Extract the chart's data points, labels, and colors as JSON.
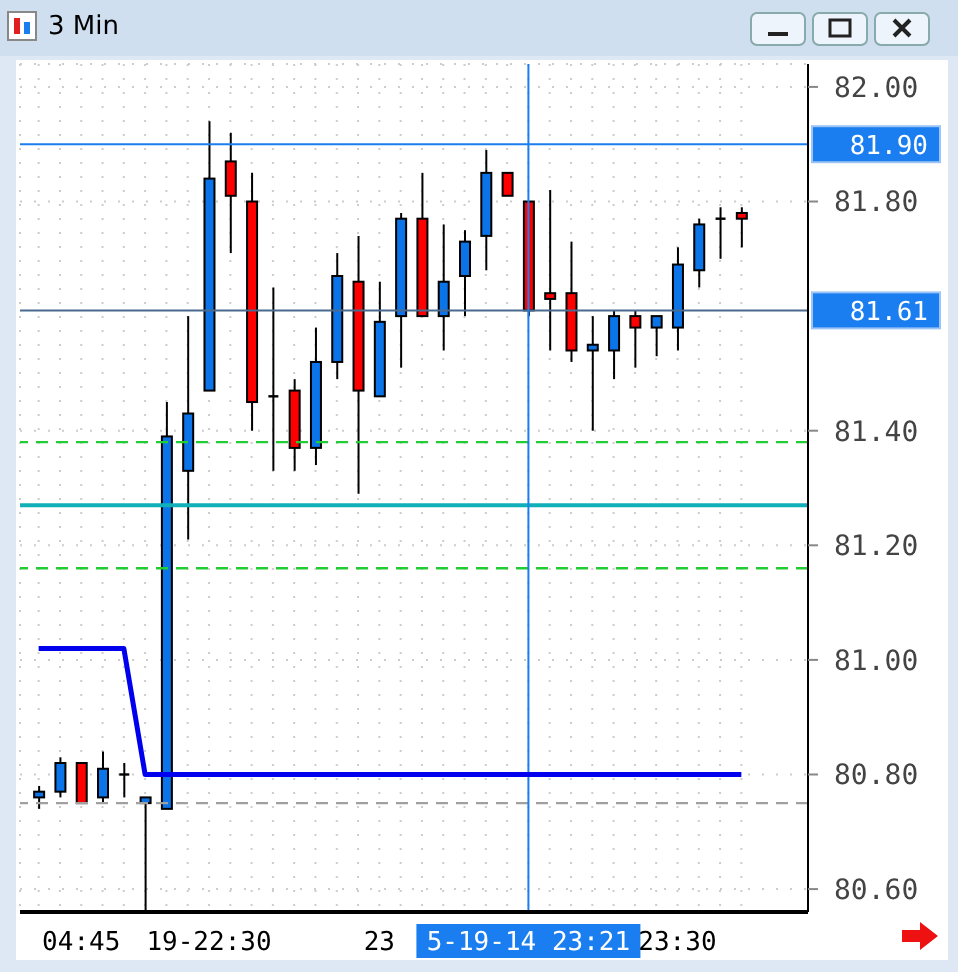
{
  "chart_data": {
    "type": "candlestick",
    "title": "3 Min",
    "categories": [
      null,
      null,
      "04:45",
      null,
      null,
      null,
      null,
      null,
      "19-22:30",
      null,
      null,
      null,
      null,
      null,
      null,
      null,
      "23",
      null,
      null,
      null,
      null,
      null,
      null,
      "5-19-14 23:21",
      null,
      null,
      null,
      null,
      null,
      null,
      "23:30",
      null,
      null,
      null
    ],
    "ohlc": [
      [
        80.76,
        80.78,
        80.74,
        80.77
      ],
      [
        80.77,
        80.83,
        80.76,
        80.82
      ],
      [
        80.82,
        80.82,
        80.75,
        80.75
      ],
      [
        80.76,
        80.84,
        80.75,
        80.81
      ],
      [
        80.8,
        80.82,
        80.76,
        80.8
      ],
      [
        80.75,
        80.76,
        80.56,
        80.76
      ],
      [
        80.74,
        81.45,
        80.74,
        81.39
      ],
      [
        81.33,
        81.6,
        81.21,
        81.43
      ],
      [
        81.47,
        81.94,
        81.47,
        81.84
      ],
      [
        81.87,
        81.92,
        81.71,
        81.81
      ],
      [
        81.8,
        81.85,
        81.4,
        81.45
      ],
      [
        81.46,
        81.65,
        81.33,
        81.46
      ],
      [
        81.47,
        81.49,
        81.33,
        81.37
      ],
      [
        81.37,
        81.58,
        81.34,
        81.52
      ],
      [
        81.52,
        81.71,
        81.49,
        81.67
      ],
      [
        81.66,
        81.74,
        81.29,
        81.47
      ],
      [
        81.46,
        81.66,
        81.46,
        81.59
      ],
      [
        81.6,
        81.78,
        81.51,
        81.77
      ],
      [
        81.77,
        81.85,
        81.6,
        81.6
      ],
      [
        81.6,
        81.76,
        81.54,
        81.66
      ],
      [
        81.67,
        81.75,
        81.6,
        81.73
      ],
      [
        81.74,
        81.89,
        81.68,
        81.85
      ],
      [
        81.85,
        81.85,
        81.81,
        81.81
      ],
      [
        81.8,
        81.8,
        81.6,
        81.61
      ],
      [
        81.64,
        81.82,
        81.54,
        81.63
      ],
      [
        81.64,
        81.73,
        81.52,
        81.54
      ],
      [
        81.54,
        81.6,
        81.4,
        81.55
      ],
      [
        81.54,
        81.61,
        81.49,
        81.6
      ],
      [
        81.6,
        81.61,
        81.51,
        81.58
      ],
      [
        81.58,
        81.6,
        81.53,
        81.6
      ],
      [
        81.58,
        81.72,
        81.54,
        81.69
      ],
      [
        81.68,
        81.77,
        81.65,
        81.76
      ],
      [
        81.77,
        81.79,
        81.7,
        81.77
      ],
      [
        81.78,
        81.79,
        81.72,
        81.77
      ]
    ],
    "colors": [
      "#0a74e8",
      "#0a74e8",
      "#ff0000",
      "#0a74e8",
      "#000000",
      "#0a74e8",
      "#0a74e8",
      "#0a74e8",
      "#0a74e8",
      "#ff0000",
      "#ff0000",
      "#000000",
      "#ff0000",
      "#0a74e8",
      "#0a74e8",
      "#ff0000",
      "#0a74e8",
      "#0a74e8",
      "#ff0000",
      "#0a74e8",
      "#0a74e8",
      "#0a74e8",
      "#ff0000",
      "#ff0000",
      "#ff0000",
      "#ff0000",
      "#0a74e8",
      "#0a74e8",
      "#ff0000",
      "#0a74e8",
      "#0a74e8",
      "#0a74e8",
      "#000000",
      "#ff0000"
    ],
    "series": [
      {
        "type": "line",
        "color": "#0000ee",
        "values": [
          81.02,
          81.02,
          81.02,
          81.02,
          81.02,
          80.8,
          80.8,
          80.8,
          80.8,
          80.8,
          80.8,
          80.8,
          80.8,
          80.8,
          80.8,
          80.8,
          80.8,
          80.8,
          80.8,
          80.8,
          80.8,
          80.8,
          80.8,
          80.8,
          80.8,
          80.8,
          80.8,
          80.8,
          80.8,
          80.8,
          80.8,
          80.8,
          80.8,
          80.8
        ]
      }
    ],
    "ref_lines": [
      {
        "axis": "y",
        "value": 81.9,
        "label": "81.90",
        "color": "#1a7ef0",
        "line_style": "solid"
      },
      {
        "axis": "y",
        "value": 81.61,
        "label": "81.61",
        "color": "#4a6a90",
        "line_style": "solid"
      },
      {
        "axis": "y",
        "value": 81.38,
        "color": "#22cc33",
        "line_style": "dashed"
      },
      {
        "axis": "y",
        "value": 81.27,
        "color": "#11b0b8",
        "line_style": "solid"
      },
      {
        "axis": "y",
        "value": 81.16,
        "color": "#22cc33",
        "line_style": "dashed"
      },
      {
        "axis": "y",
        "value": 80.75,
        "color": "#a0a0a0",
        "line_style": "dashed"
      },
      {
        "axis": "x",
        "value": "5-19-14 23:21",
        "color": "#1a7ef0",
        "line_style": "solid"
      }
    ],
    "ylim": [
      80.56,
      82.04
    ],
    "yticks": [
      {
        "value": 80.6,
        "label": "80.60"
      },
      {
        "value": 80.8,
        "label": "80.80"
      },
      {
        "value": 81,
        "label": "81.00"
      },
      {
        "value": 81.2,
        "label": "81.20"
      },
      {
        "value": 81.4,
        "label": "81.40"
      },
      {
        "value": 81.8,
        "label": "81.80"
      },
      {
        "value": 82,
        "label": "82.00"
      }
    ],
    "grid": true
  }
}
